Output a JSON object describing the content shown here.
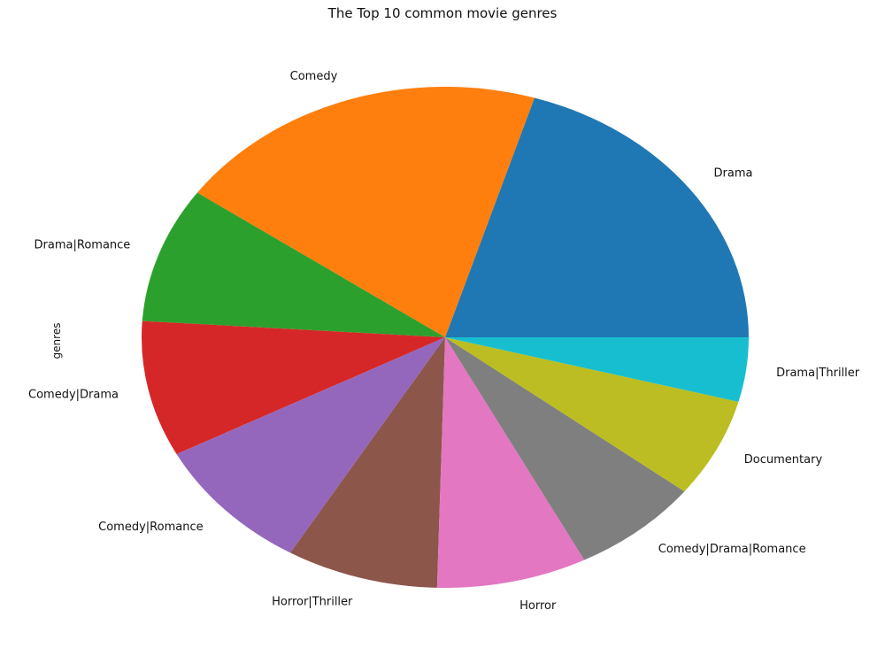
{
  "chart_data": {
    "type": "pie",
    "title": "The Top 10 common movie genres",
    "ylabel": "genres",
    "start_angle_deg": 0,
    "direction": "counterclockwise",
    "slices": [
      {
        "label": "Drama",
        "value": 21.5,
        "color": "#1f77b4"
      },
      {
        "label": "Comedy",
        "value": 21.2,
        "color": "#ff7f0e"
      },
      {
        "label": "Drama|Romance",
        "value": 9.3,
        "color": "#2ca02c"
      },
      {
        "label": "Comedy|Drama",
        "value": 9.3,
        "color": "#d62728"
      },
      {
        "label": "Comedy|Romance",
        "value": 9.3,
        "color": "#9467bd"
      },
      {
        "label": "Horror|Thriller",
        "value": 8.6,
        "color": "#8c564b"
      },
      {
        "label": "Horror",
        "value": 8.5,
        "color": "#e377c2"
      },
      {
        "label": "Comedy|Drama|Romance",
        "value": 7.3,
        "color": "#7f7f7f"
      },
      {
        "label": "Documentary",
        "value": 6.8,
        "color": "#bcbd22"
      },
      {
        "label": "Drama|Thriller",
        "value": 4.4,
        "color": "#17becf"
      }
    ]
  }
}
